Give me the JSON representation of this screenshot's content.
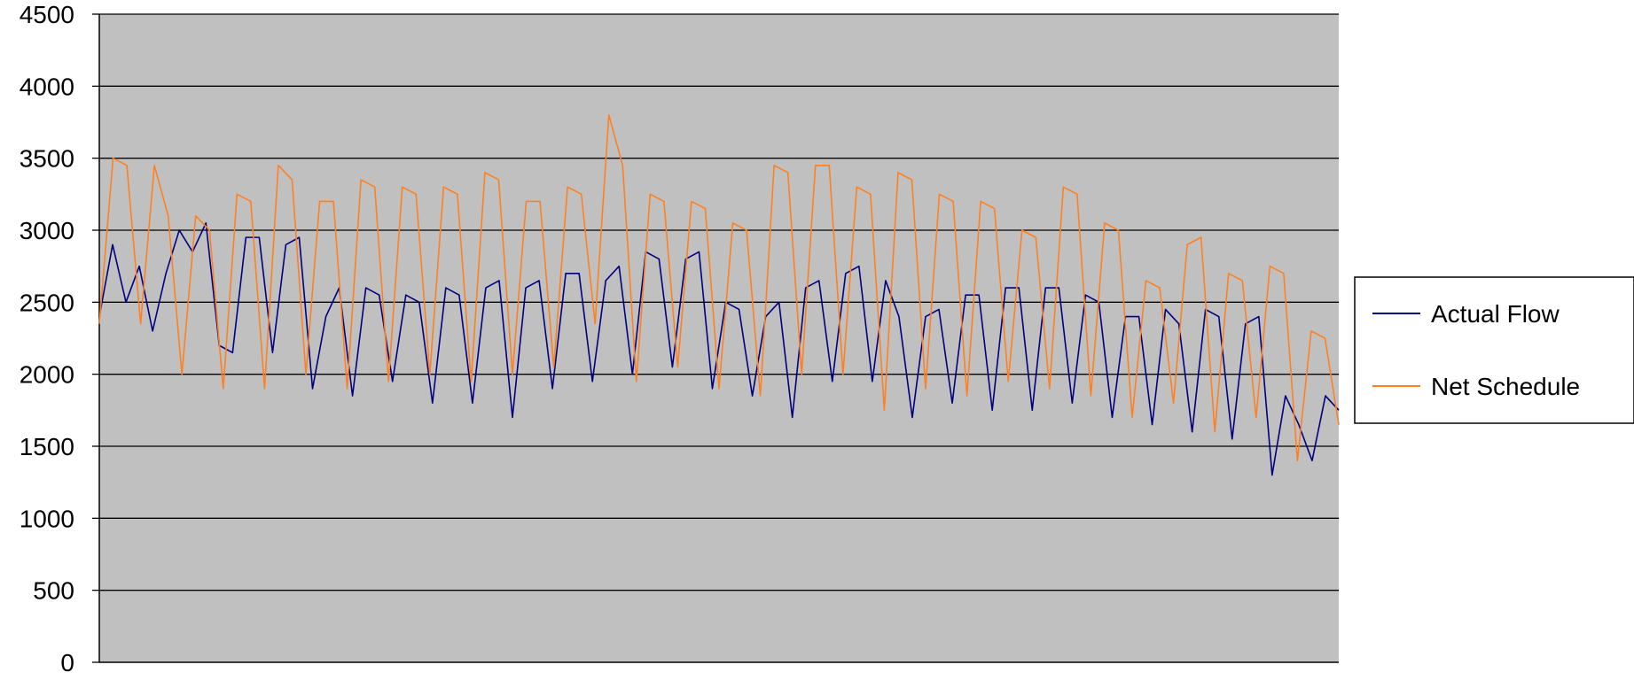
{
  "chart_data": {
    "type": "line",
    "title": "",
    "xlabel": "",
    "ylabel": "",
    "ylim": [
      0,
      4500
    ],
    "yticks": [
      0,
      500,
      1000,
      1500,
      2000,
      2500,
      3000,
      3500,
      4000,
      4500
    ],
    "grid": "horizontal",
    "plot_background": "#C0C0C0",
    "legend": "right",
    "series": [
      {
        "name": "Actual Flow",
        "color": "#000080",
        "values": [
          2400,
          2900,
          2500,
          2750,
          2300,
          2700,
          3000,
          2850,
          3050,
          2200,
          2150,
          2950,
          2950,
          2150,
          2900,
          2950,
          1900,
          2400,
          2600,
          1850,
          2600,
          2550,
          1950,
          2550,
          2500,
          1800,
          2600,
          2550,
          1800,
          2600,
          2650,
          1700,
          2600,
          2650,
          1900,
          2700,
          2700,
          1950,
          2650,
          2750,
          2000,
          2850,
          2800,
          2050,
          2800,
          2850,
          1900,
          2500,
          2450,
          1850,
          2400,
          2500,
          1700,
          2600,
          2650,
          1950,
          2700,
          2750,
          1950,
          2650,
          2400,
          1700,
          2400,
          2450,
          1800,
          2550,
          2550,
          1750,
          2600,
          2600,
          1750,
          2600,
          2600,
          1800,
          2550,
          2500,
          1700,
          2400,
          2400,
          1650,
          2450,
          2350,
          1600,
          2450,
          2400,
          1550,
          2350,
          2400,
          1300,
          1850,
          1650,
          1400,
          1850,
          1750
        ]
      },
      {
        "name": "Net Schedule",
        "color": "#FF8020",
        "values": [
          2350,
          3500,
          3450,
          2350,
          3450,
          3100,
          2000,
          3100,
          3000,
          1900,
          3250,
          3200,
          1900,
          3450,
          3350,
          2000,
          3200,
          3200,
          1900,
          3350,
          3300,
          1950,
          3300,
          3250,
          2000,
          3300,
          3250,
          1950,
          3400,
          3350,
          2000,
          3200,
          3200,
          2050,
          3300,
          3250,
          2350,
          3800,
          3450,
          1950,
          3250,
          3200,
          2050,
          3200,
          3150,
          1900,
          3050,
          3000,
          1850,
          3450,
          3400,
          2000,
          3450,
          3450,
          2000,
          3300,
          3250,
          1750,
          3400,
          3350,
          1900,
          3250,
          3200,
          1850,
          3200,
          3150,
          1950,
          3000,
          2950,
          1900,
          3300,
          3250,
          1850,
          3050,
          3000,
          1700,
          2650,
          2600,
          1800,
          2900,
          2950,
          1600,
          2700,
          2650,
          1700,
          2750,
          2700,
          1400,
          2300,
          2250,
          1650
        ]
      }
    ]
  }
}
